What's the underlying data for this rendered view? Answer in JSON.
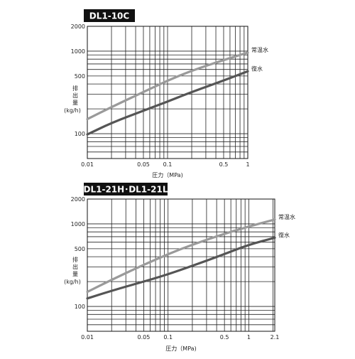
{
  "chart_data": [
    {
      "type": "line",
      "title": "DL1-10C",
      "xlabel": "圧力（MPa)",
      "ylabel": "排出量 (kg/h)",
      "ylabel_chars": [
        "排",
        "出",
        "量"
      ],
      "ylabel_unit": "(kg/h)",
      "x_scale": "log",
      "y_scale": "log",
      "xlim": [
        0.01,
        1
      ],
      "ylim": [
        50,
        2000
      ],
      "x_ticks": [
        0.01,
        0.05,
        0.1,
        0.5,
        1
      ],
      "x_tick_labels": [
        "0.01",
        "0.05",
        "0.1",
        "0.5",
        "1"
      ],
      "y_ticks": [
        100,
        500,
        1000,
        2000
      ],
      "y_tick_labels": [
        "100",
        "500",
        "1000",
        "2000"
      ],
      "grid": true,
      "series": [
        {
          "name": "常温水",
          "color": "#9a9a9a",
          "x": [
            0.01,
            0.02,
            0.05,
            0.1,
            0.2,
            0.5,
            1
          ],
          "y": [
            150,
            210,
            320,
            440,
            580,
            780,
            960
          ]
        },
        {
          "name": "復水",
          "color": "#555555",
          "x": [
            0.01,
            0.02,
            0.05,
            0.1,
            0.2,
            0.5,
            1
          ],
          "y": [
            98,
            135,
            190,
            245,
            320,
            440,
            570
          ]
        }
      ]
    },
    {
      "type": "line",
      "title": "DL1-21H･DL1-21L",
      "xlabel": "圧力（MPa)",
      "ylabel": "排出量 (kg/h)",
      "ylabel_chars": [
        "排",
        "出",
        "量"
      ],
      "ylabel_unit": "(kg/h)",
      "x_scale": "log",
      "y_scale": "log",
      "xlim": [
        0.01,
        2.1
      ],
      "ylim": [
        50,
        2000
      ],
      "x_ticks": [
        0.01,
        0.05,
        0.1,
        0.5,
        1,
        2.1
      ],
      "x_tick_labels": [
        "0.01",
        "0.05",
        "0.1",
        "0.5",
        "1",
        "2.1"
      ],
      "y_ticks": [
        100,
        500,
        1000,
        2000
      ],
      "y_tick_labels": [
        "100",
        "500",
        "1000",
        "2000"
      ],
      "grid": true,
      "series": [
        {
          "name": "常温水",
          "color": "#9a9a9a",
          "x": [
            0.01,
            0.02,
            0.05,
            0.1,
            0.2,
            0.5,
            1,
            2.1
          ],
          "y": [
            150,
            210,
            320,
            430,
            560,
            760,
            930,
            1130
          ]
        },
        {
          "name": "復水",
          "color": "#555555",
          "x": [
            0.01,
            0.02,
            0.05,
            0.1,
            0.2,
            0.5,
            1,
            2.1
          ],
          "y": [
            125,
            155,
            200,
            245,
            310,
            430,
            560,
            680
          ]
        }
      ]
    }
  ]
}
